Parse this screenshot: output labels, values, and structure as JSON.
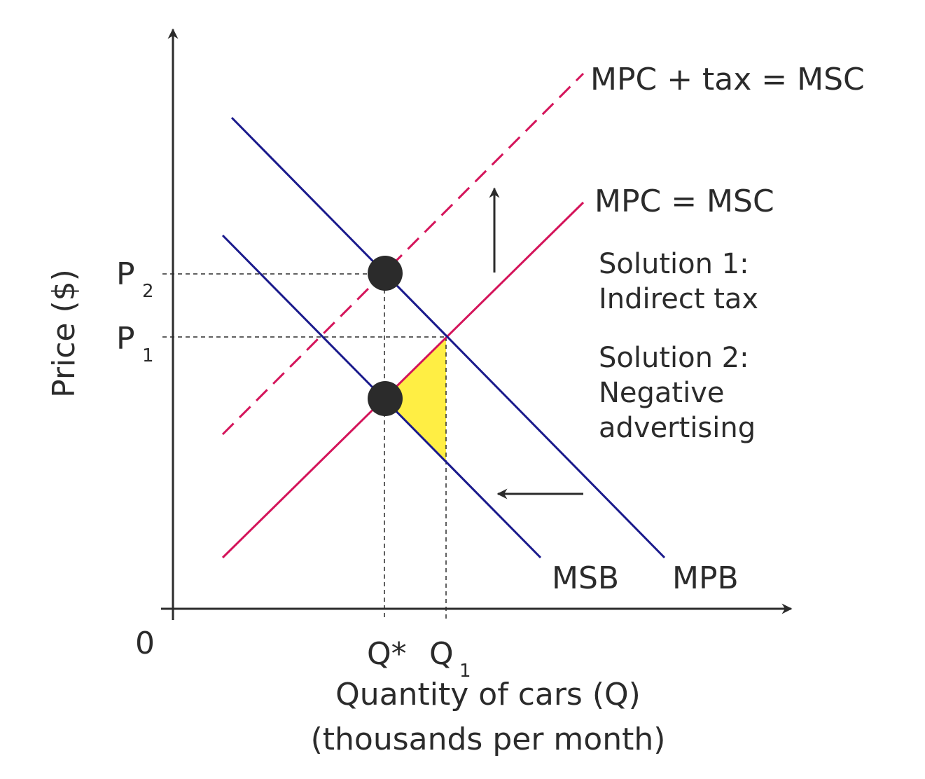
{
  "diagram": {
    "axes": {
      "y_label": "Price ($)",
      "x_label_line1": "Quantity of cars (Q)",
      "x_label_line2": "(thousands per month)",
      "origin": "0"
    },
    "ticks": {
      "p2_main": "P",
      "p2_sub": "2",
      "p1_main": "P",
      "p1_sub": "1",
      "qstar": "Q*",
      "q1_main": "Q",
      "q1_sub": "1"
    },
    "curves": {
      "msc_tax": "MPC + tax = MSC",
      "mpc": "MPC = MSC",
      "msb": "MSB",
      "mpb": "MPB"
    },
    "solutions": {
      "s1_line1": "Solution 1:",
      "s1_line2": "Indirect tax",
      "s2_line1": "Solution 2:",
      "s2_line2": "Negative",
      "s2_line3": "advertising"
    },
    "colors": {
      "demand": "#1a1a8c",
      "supply": "#d4145a",
      "welfare_loss": "#ffee44",
      "axis": "#2b2b2b"
    }
  }
}
